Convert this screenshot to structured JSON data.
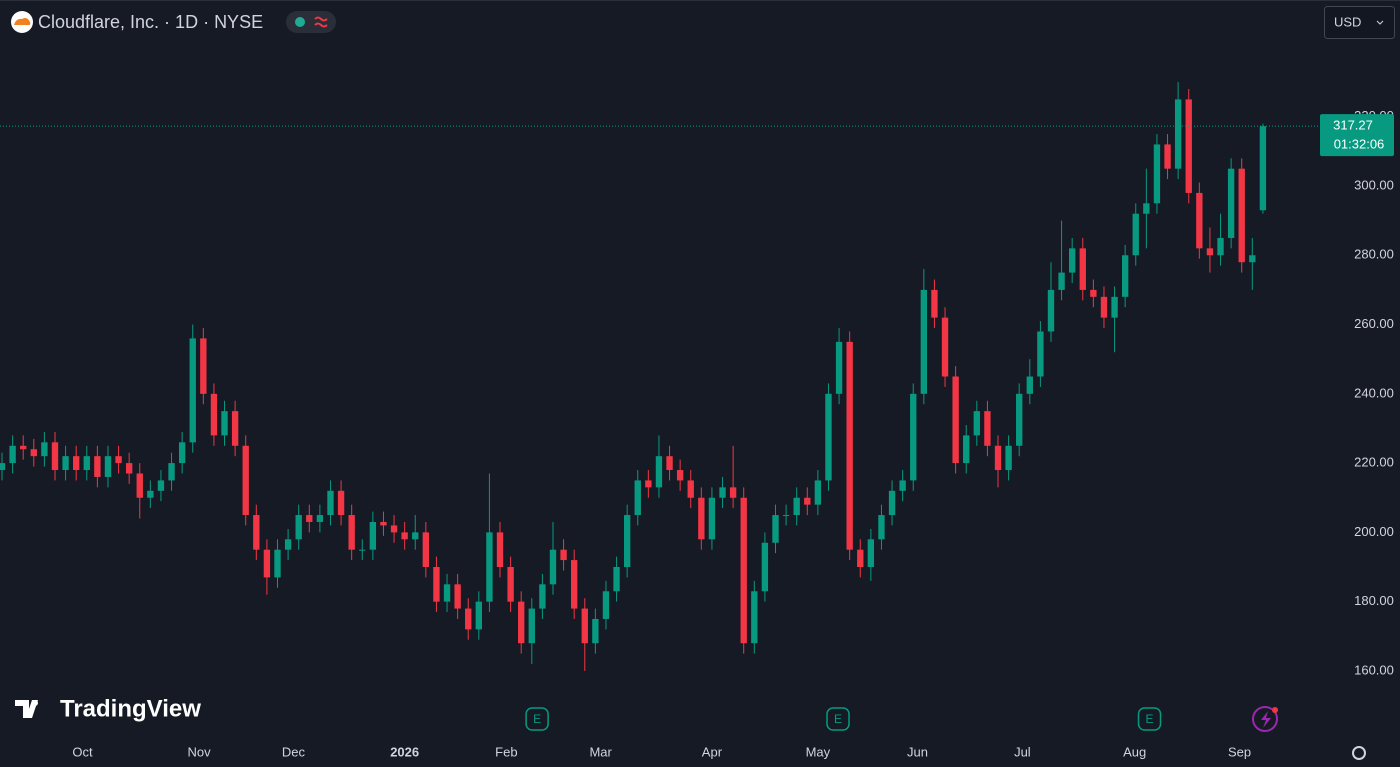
{
  "chart_data": {
    "type": "candlestick",
    "title": "Cloudflare, Inc. · 1D · NYSE",
    "currency": "USD",
    "watermark": "TradingView",
    "countdown": "01:32:06",
    "up_color": "#089981",
    "down_color": "#f23645",
    "open": [
      218,
      220,
      225,
      224,
      222,
      226,
      218,
      222,
      218,
      222,
      216,
      222,
      220,
      217,
      210,
      212,
      215,
      220,
      226,
      256,
      240,
      228,
      235,
      225,
      205,
      195,
      187,
      195,
      198,
      205,
      203,
      205,
      212,
      205,
      195,
      195,
      203,
      202,
      200,
      198,
      200,
      190,
      180,
      185,
      178,
      172,
      180,
      200,
      190,
      180,
      168,
      178,
      185,
      195,
      192,
      178,
      168,
      175,
      183,
      190,
      205,
      215,
      213,
      222,
      218,
      215,
      210,
      198,
      210,
      213,
      210,
      168,
      183,
      197,
      205,
      205,
      210,
      208,
      215,
      240,
      255,
      195,
      190,
      198,
      205,
      212,
      215,
      240,
      270,
      262,
      245,
      220,
      228,
      235,
      225,
      218,
      225,
      240,
      245,
      258,
      270,
      275,
      282,
      270,
      268,
      262,
      268,
      280,
      292,
      295,
      312,
      305,
      325,
      298,
      282,
      280,
      285,
      305,
      278,
      293
    ],
    "high": [
      223,
      228,
      228,
      227,
      229,
      229,
      225,
      225,
      225,
      225,
      225,
      225,
      223,
      220,
      215,
      218,
      223,
      229,
      260,
      259,
      243,
      238,
      238,
      228,
      208,
      198,
      198,
      201,
      208,
      208,
      208,
      215,
      215,
      208,
      198,
      206,
      206,
      205,
      203,
      205,
      203,
      193,
      188,
      188,
      181,
      183,
      217,
      203,
      193,
      183,
      181,
      188,
      203,
      198,
      195,
      181,
      178,
      186,
      193,
      208,
      218,
      218,
      228,
      225,
      221,
      218,
      213,
      213,
      216,
      225,
      213,
      186,
      200,
      208,
      208,
      213,
      213,
      218,
      243,
      259,
      258,
      198,
      201,
      208,
      215,
      218,
      243,
      276,
      273,
      265,
      248,
      231,
      238,
      238,
      228,
      228,
      243,
      250,
      261,
      278,
      290,
      285,
      285,
      273,
      271,
      271,
      283,
      295,
      305,
      315,
      315,
      330,
      328,
      301,
      288,
      292,
      308,
      308,
      285,
      318
    ],
    "low": [
      215,
      217,
      221,
      219,
      219,
      215,
      215,
      215,
      215,
      213,
      213,
      217,
      214,
      204,
      207,
      209,
      212,
      217,
      223,
      237,
      225,
      225,
      222,
      202,
      192,
      182,
      184,
      192,
      195,
      200,
      200,
      202,
      202,
      192,
      192,
      192,
      199,
      197,
      195,
      195,
      187,
      177,
      177,
      175,
      169,
      169,
      177,
      187,
      177,
      165,
      162,
      175,
      182,
      189,
      175,
      160,
      165,
      172,
      180,
      187,
      202,
      210,
      210,
      215,
      212,
      207,
      195,
      195,
      207,
      207,
      165,
      165,
      180,
      194,
      202,
      202,
      205,
      205,
      212,
      237,
      192,
      187,
      186,
      195,
      202,
      209,
      212,
      237,
      259,
      242,
      217,
      217,
      225,
      222,
      213,
      215,
      222,
      237,
      242,
      255,
      267,
      272,
      267,
      265,
      259,
      252,
      265,
      277,
      282,
      292,
      302,
      302,
      295,
      279,
      275,
      277,
      282,
      275,
      270,
      292
    ],
    "close": [
      220,
      225,
      224,
      222,
      226,
      218,
      222,
      218,
      222,
      216,
      222,
      220,
      217,
      210,
      212,
      215,
      220,
      226,
      256,
      240,
      228,
      235,
      225,
      205,
      195,
      187,
      195,
      198,
      205,
      203,
      205,
      212,
      205,
      195,
      195,
      203,
      202,
      200,
      198,
      200,
      190,
      180,
      185,
      178,
      172,
      180,
      200,
      190,
      180,
      168,
      178,
      185,
      195,
      192,
      178,
      168,
      175,
      183,
      190,
      205,
      215,
      213,
      222,
      218,
      215,
      210,
      198,
      210,
      213,
      210,
      168,
      183,
      197,
      205,
      205,
      210,
      208,
      215,
      240,
      255,
      195,
      190,
      198,
      205,
      212,
      215,
      240,
      270,
      262,
      245,
      220,
      228,
      235,
      225,
      218,
      225,
      240,
      245,
      258,
      270,
      275,
      282,
      270,
      268,
      262,
      268,
      280,
      292,
      295,
      312,
      305,
      325,
      298,
      282,
      280,
      285,
      305,
      278,
      280,
      317.27
    ],
    "earnings": {
      "label": "E",
      "x": [
        50.5,
        78.9,
        108.3
      ]
    },
    "xlim": [
      -0.19,
      124.2
    ],
    "xticks": [
      {
        "value": 7.6,
        "label": "Oct"
      },
      {
        "value": 18.6,
        "label": "Nov"
      },
      {
        "value": 27.5,
        "label": "Dec"
      },
      {
        "value": 38,
        "label": "2026"
      },
      {
        "value": 47.6,
        "label": "Feb"
      },
      {
        "value": 56.5,
        "label": "Mar"
      },
      {
        "value": 67,
        "label": "Apr"
      },
      {
        "value": 77,
        "label": "May"
      },
      {
        "value": 86.4,
        "label": "Jun"
      },
      {
        "value": 96.3,
        "label": "Jul"
      },
      {
        "value": 106.9,
        "label": "Aug"
      },
      {
        "value": 116.8,
        "label": "Sep"
      }
    ],
    "ylim": [
      141.5,
      353.7
    ],
    "yticks": [
      {
        "value": 160,
        "label": "160.00"
      },
      {
        "value": 180,
        "label": "180.00"
      },
      {
        "value": 200,
        "label": "200.00"
      },
      {
        "value": 220,
        "label": "220.00"
      },
      {
        "value": 240,
        "label": "240.00"
      },
      {
        "value": 260,
        "label": "260.00"
      },
      {
        "value": 280,
        "label": "280.00"
      },
      {
        "value": 300,
        "label": "300.00"
      },
      {
        "value": 320,
        "label": "320.00"
      }
    ]
  }
}
